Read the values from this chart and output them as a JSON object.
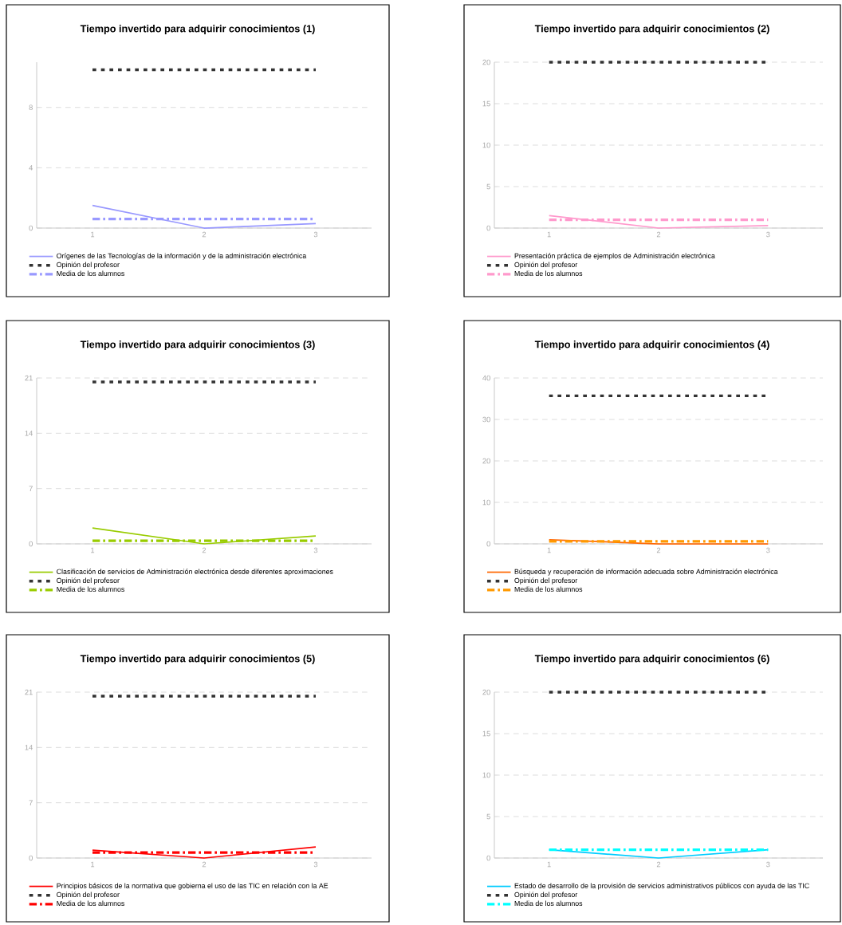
{
  "chart_data": [
    {
      "type": "line",
      "title": "Tiempo invertido para adquirir conocimientos (1)",
      "categories": [
        "1",
        "2",
        "3"
      ],
      "ylim": [
        0,
        11
      ],
      "yticks": [
        0,
        4,
        8
      ],
      "grid": "y",
      "legend": "bottom",
      "series": [
        {
          "name": "Orígenes de las Tecnologías de la información y de la administración electrónica",
          "color": "#9999ff",
          "line_style": "solid",
          "values": [
            1.5,
            0,
            0.3
          ]
        },
        {
          "name": "Opinión del profesor",
          "color": "#333333",
          "line_style": "dotted",
          "values": [
            10.5,
            10.5,
            10.5
          ]
        },
        {
          "name": "Media de los alumnos",
          "color": "#9999ff",
          "line_style": "dashdot",
          "values": [
            0.6,
            0.6,
            0.6
          ]
        }
      ]
    },
    {
      "type": "line",
      "title": "Tiempo invertido para adquirir conocimientos (2)",
      "categories": [
        "1",
        "2",
        "3"
      ],
      "ylim": [
        0,
        20
      ],
      "yticks": [
        0,
        5,
        10,
        15,
        20
      ],
      "grid": "y",
      "legend": "bottom",
      "series": [
        {
          "name": "Presentación práctica de ejemplos de Administración electrónica",
          "color": "#ff99cc",
          "line_style": "solid",
          "values": [
            1.5,
            0,
            0.3
          ]
        },
        {
          "name": "Opinión del profesor",
          "color": "#333333",
          "line_style": "dotted",
          "values": [
            20,
            20,
            20
          ]
        },
        {
          "name": "Media de los alumnos",
          "color": "#ff99cc",
          "line_style": "dashdot",
          "values": [
            1,
            1,
            1
          ]
        }
      ]
    },
    {
      "type": "line",
      "title": "Tiempo invertido para adquirir conocimientos (3)",
      "categories": [
        "1",
        "2",
        "3"
      ],
      "ylim": [
        0,
        21
      ],
      "yticks": [
        0,
        7,
        14,
        21
      ],
      "grid": "y",
      "legend": "bottom",
      "series": [
        {
          "name": "Clasificación de servicios de Administración electrónica desde diferentes aproximaciones",
          "color": "#99cc00",
          "line_style": "solid",
          "values": [
            2,
            0,
            1
          ]
        },
        {
          "name": "Opinión del profesor",
          "color": "#333333",
          "line_style": "dotted",
          "values": [
            20.5,
            20.5,
            20.5
          ]
        },
        {
          "name": "Media de los alumnos",
          "color": "#99cc00",
          "line_style": "dashdot",
          "values": [
            0.4,
            0.4,
            0.4
          ]
        }
      ]
    },
    {
      "type": "line",
      "title": "Tiempo invertido para adquirir conocimientos (4)",
      "categories": [
        "1",
        "2",
        "3"
      ],
      "ylim": [
        0,
        40
      ],
      "yticks": [
        0,
        10,
        20,
        30,
        40
      ],
      "grid": "y",
      "legend": "bottom",
      "series": [
        {
          "name": "Búsqueda y recuperación de información adecuada sobre Administración electrónica",
          "color": "#ff6600",
          "line_style": "solid",
          "values": [
            1,
            0,
            0
          ]
        },
        {
          "name": "Opinión del profesor",
          "color": "#333333",
          "line_style": "dotted",
          "values": [
            35.7,
            35.7,
            35.7
          ]
        },
        {
          "name": "Media de los alumnos",
          "color": "#ff9900",
          "line_style": "dashdot",
          "values": [
            0.6,
            0.6,
            0.6
          ]
        }
      ]
    },
    {
      "type": "line",
      "title": "Tiempo invertido para adquirir conocimientos  (5)",
      "categories": [
        "1",
        "2",
        "3"
      ],
      "ylim": [
        0,
        21
      ],
      "yticks": [
        0,
        7,
        14,
        21
      ],
      "grid": "y",
      "legend": "bottom",
      "series": [
        {
          "name": "Principios básicos de la normativa que gobierna el uso de las TIC en relación con la AE",
          "color": "#ff0000",
          "line_style": "solid",
          "values": [
            1,
            0,
            1.4
          ]
        },
        {
          "name": "Opinión del profesor",
          "color": "#333333",
          "line_style": "dotted",
          "values": [
            20.5,
            20.5,
            20.5
          ]
        },
        {
          "name": "Media de los alumnos",
          "color": "#ff0000",
          "line_style": "dashdot",
          "values": [
            0.7,
            0.7,
            0.7
          ]
        }
      ]
    },
    {
      "type": "line",
      "title": "Tiempo invertido para adquirir conocimientos (6)",
      "categories": [
        "1",
        "2",
        "3"
      ],
      "ylim": [
        0,
        20
      ],
      "yticks": [
        0,
        5,
        10,
        15,
        20
      ],
      "grid": "y",
      "legend": "bottom",
      "series": [
        {
          "name": "Estado de desarrollo de la provisión de servicios administrativos públicos con ayuda de las TIC",
          "color": "#00ccff",
          "line_style": "solid",
          "values": [
            1,
            0,
            1
          ]
        },
        {
          "name": "Opinión del profesor",
          "color": "#333333",
          "line_style": "dotted",
          "values": [
            20,
            20,
            20
          ]
        },
        {
          "name": "Media de los alumnos",
          "color": "#00ffff",
          "line_style": "dashdot",
          "values": [
            1,
            1,
            1
          ]
        }
      ]
    }
  ]
}
